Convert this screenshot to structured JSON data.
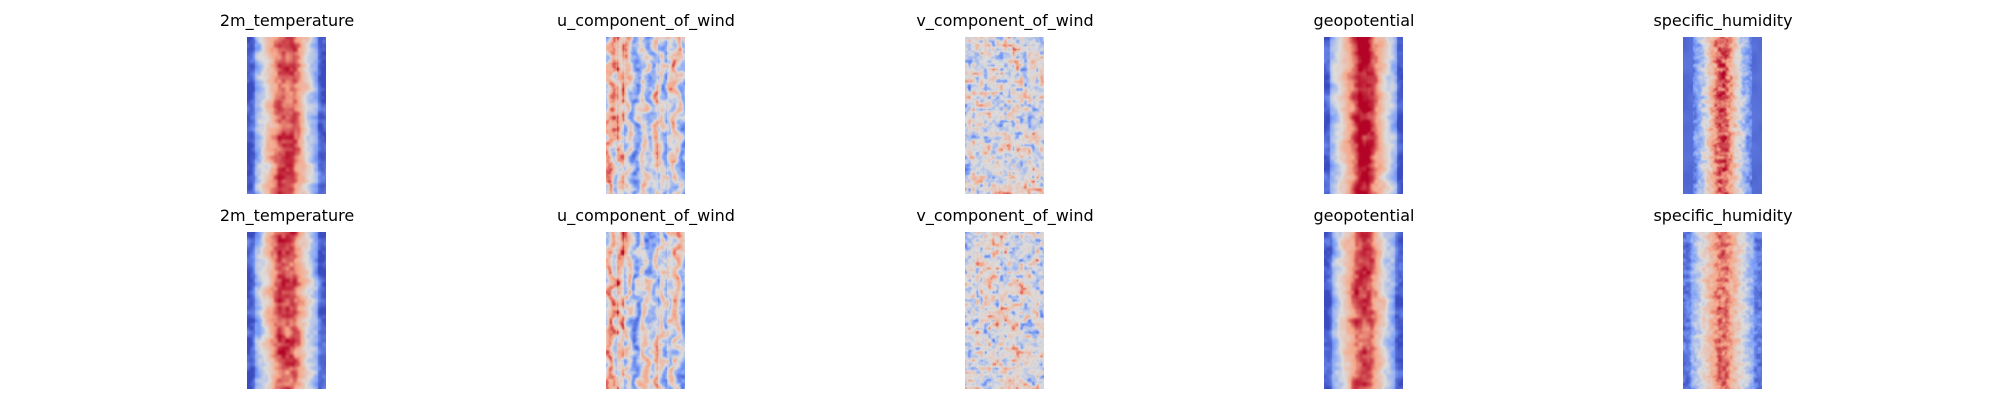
{
  "figure": {
    "colormap": "coolwarm",
    "colors": {
      "cold": "#3b4cc0",
      "neutral": "#dddddd",
      "warm": "#b40426",
      "background": "#ffffff"
    },
    "rows": [
      {
        "panels": [
          {
            "title": "2m_temperature",
            "pattern": "warm-core"
          },
          {
            "title": "u_component_of_wind",
            "pattern": "banded-wind"
          },
          {
            "title": "v_component_of_wind",
            "pattern": "noisy-neutral"
          },
          {
            "title": "geopotential",
            "pattern": "warm-core-strong"
          },
          {
            "title": "specific_humidity",
            "pattern": "humid-core-cold-edges"
          }
        ]
      },
      {
        "panels": [
          {
            "title": "2m_temperature",
            "pattern": "warm-core"
          },
          {
            "title": "u_component_of_wind",
            "pattern": "banded-wind"
          },
          {
            "title": "v_component_of_wind",
            "pattern": "noisy-neutral"
          },
          {
            "title": "geopotential",
            "pattern": "warm-core"
          },
          {
            "title": "specific_humidity",
            "pattern": "humid-core-soft"
          }
        ]
      }
    ]
  }
}
